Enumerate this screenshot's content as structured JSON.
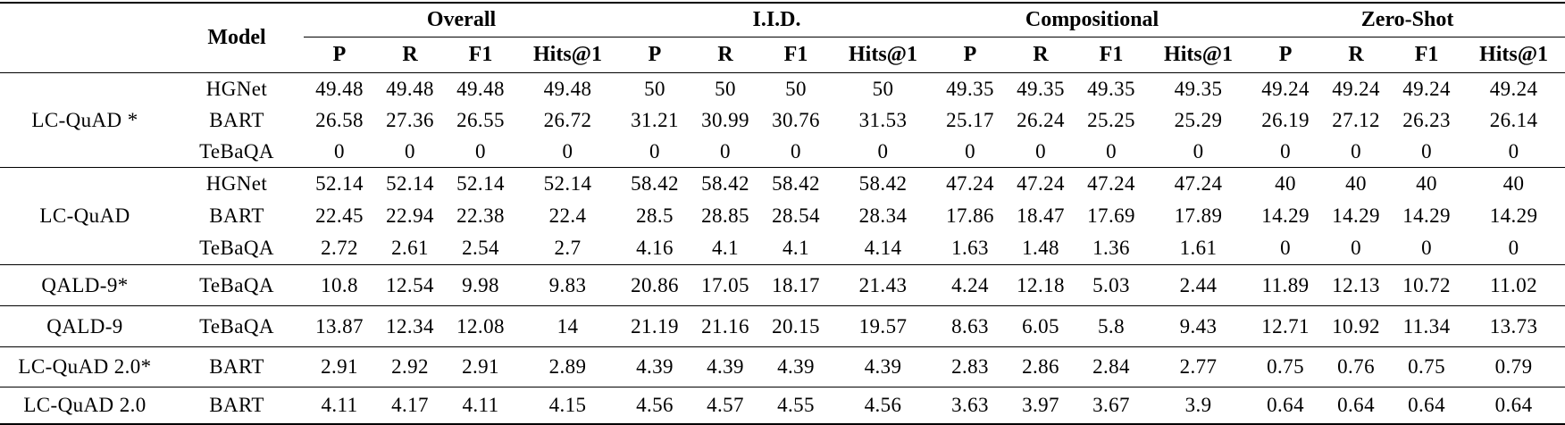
{
  "table": {
    "header": {
      "corner": "",
      "model": "Model",
      "groups": [
        {
          "label": "Overall",
          "metrics": [
            "P",
            "R",
            "F1",
            "Hits@1"
          ]
        },
        {
          "label": "I.I.D.",
          "metrics": [
            "P",
            "R",
            "F1",
            "Hits@1"
          ]
        },
        {
          "label": "Compositional",
          "metrics": [
            "P",
            "R",
            "F1",
            "Hits@1"
          ]
        },
        {
          "label": "Zero-Shot",
          "metrics": [
            "P",
            "R",
            "F1",
            "Hits@1"
          ]
        }
      ]
    },
    "sections": [
      {
        "dataset": "LC-QuAD *",
        "rows": [
          {
            "model": "HGNet",
            "values": [
              "49.48",
              "49.48",
              "49.48",
              "49.48",
              "50",
              "50",
              "50",
              "50",
              "49.35",
              "49.35",
              "49.35",
              "49.35",
              "49.24",
              "49.24",
              "49.24",
              "49.24"
            ]
          },
          {
            "model": "BART",
            "values": [
              "26.58",
              "27.36",
              "26.55",
              "26.72",
              "31.21",
              "30.99",
              "30.76",
              "31.53",
              "25.17",
              "26.24",
              "25.25",
              "25.29",
              "26.19",
              "27.12",
              "26.23",
              "26.14"
            ]
          },
          {
            "model": "TeBaQA",
            "values": [
              "0",
              "0",
              "0",
              "0",
              "0",
              "0",
              "0",
              "0",
              "0",
              "0",
              "0",
              "0",
              "0",
              "0",
              "0",
              "0"
            ]
          }
        ]
      },
      {
        "dataset": "LC-QuAD",
        "rows": [
          {
            "model": "HGNet",
            "values": [
              "52.14",
              "52.14",
              "52.14",
              "52.14",
              "58.42",
              "58.42",
              "58.42",
              "58.42",
              "47.24",
              "47.24",
              "47.24",
              "47.24",
              "40",
              "40",
              "40",
              "40"
            ]
          },
          {
            "model": "BART",
            "values": [
              "22.45",
              "22.94",
              "22.38",
              "22.4",
              "28.5",
              "28.85",
              "28.54",
              "28.34",
              "17.86",
              "18.47",
              "17.69",
              "17.89",
              "14.29",
              "14.29",
              "14.29",
              "14.29"
            ]
          },
          {
            "model": "TeBaQA",
            "values": [
              "2.72",
              "2.61",
              "2.54",
              "2.7",
              "4.16",
              "4.1",
              "4.1",
              "4.14",
              "1.63",
              "1.48",
              "1.36",
              "1.61",
              "0",
              "0",
              "0",
              "0"
            ]
          }
        ]
      },
      {
        "dataset": "QALD-9*",
        "rows": [
          {
            "model": "TeBaQA",
            "values": [
              "10.8",
              "12.54",
              "9.98",
              "9.83",
              "20.86",
              "17.05",
              "18.17",
              "21.43",
              "4.24",
              "12.18",
              "5.03",
              "2.44",
              "11.89",
              "12.13",
              "10.72",
              "11.02"
            ]
          }
        ]
      },
      {
        "dataset": "QALD-9",
        "rows": [
          {
            "model": "TeBaQA",
            "values": [
              "13.87",
              "12.34",
              "12.08",
              "14",
              "21.19",
              "21.16",
              "20.15",
              "19.57",
              "8.63",
              "6.05",
              "5.8",
              "9.43",
              "12.71",
              "10.92",
              "11.34",
              "13.73"
            ]
          }
        ]
      },
      {
        "dataset": "LC-QuAD 2.0*",
        "rows": [
          {
            "model": "BART",
            "values": [
              "2.91",
              "2.92",
              "2.91",
              "2.89",
              "4.39",
              "4.39",
              "4.39",
              "4.39",
              "2.83",
              "2.86",
              "2.84",
              "2.77",
              "0.75",
              "0.76",
              "0.75",
              "0.79"
            ]
          }
        ]
      },
      {
        "dataset": "LC-QuAD 2.0",
        "rows": [
          {
            "model": "BART",
            "values": [
              "4.11",
              "4.17",
              "4.11",
              "4.15",
              "4.56",
              "4.57",
              "4.55",
              "4.56",
              "3.63",
              "3.97",
              "3.67",
              "3.9",
              "0.64",
              "0.64",
              "0.64",
              "0.64"
            ]
          }
        ]
      }
    ],
    "colors": {
      "text": "#000000",
      "rule": "#000000",
      "background": "#ffffff"
    }
  }
}
